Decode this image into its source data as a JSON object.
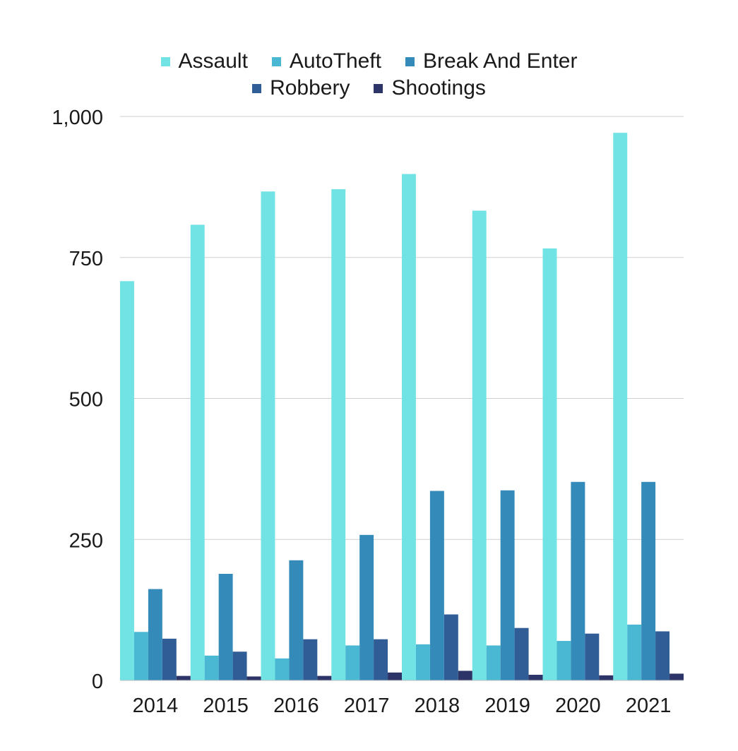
{
  "chart_data": {
    "type": "bar",
    "title": "",
    "xlabel": "",
    "ylabel": "",
    "categories": [
      "2014",
      "2015",
      "2016",
      "2017",
      "2018",
      "2019",
      "2020",
      "2021"
    ],
    "ylim": [
      0,
      1000
    ],
    "yticks": [
      0,
      250,
      500,
      750,
      1000
    ],
    "ytick_labels": [
      "0",
      "250",
      "500",
      "750",
      "1,000"
    ],
    "grid": true,
    "legend_position": "top",
    "series": [
      {
        "name": "Assault",
        "color": "#72e3e5",
        "values": [
          708,
          808,
          867,
          871,
          898,
          833,
          766,
          971
        ]
      },
      {
        "name": "AutoTheft",
        "color": "#4ab8d3",
        "values": [
          86,
          44,
          39,
          62,
          64,
          62,
          70,
          99
        ]
      },
      {
        "name": "Break And Enter",
        "color": "#348ab9",
        "values": [
          162,
          189,
          213,
          258,
          336,
          337,
          352,
          352
        ]
      },
      {
        "name": "Robbery",
        "color": "#305d95",
        "values": [
          74,
          51,
          73,
          73,
          117,
          93,
          83,
          87
        ]
      },
      {
        "name": "Shootings",
        "color": "#2d3468",
        "values": [
          8,
          7,
          8,
          14,
          17,
          10,
          9,
          12
        ]
      }
    ]
  }
}
